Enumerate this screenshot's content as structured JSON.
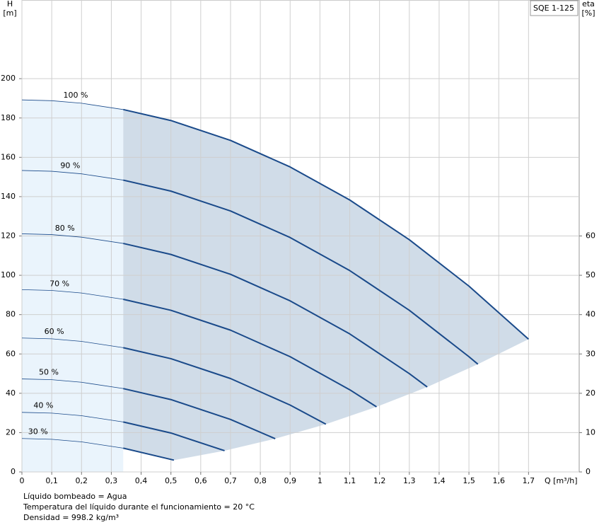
{
  "chart_data": {
    "type": "line",
    "pump_model": "SQE 1-125",
    "y_label": "H",
    "y_unit": "[m]",
    "y2_label": "eta",
    "y2_unit": "[%]",
    "x_label": "Q [m³/h]",
    "xlim": [
      0,
      1.87
    ],
    "ylim": [
      0,
      240
    ],
    "y2lim": [
      0,
      120
    ],
    "xticks": [
      0,
      {
        "value": 0.1,
        "label": "0,1"
      },
      {
        "value": 0.2,
        "label": "0,2"
      },
      {
        "value": 0.3,
        "label": "0,3"
      },
      {
        "value": 0.4,
        "label": "0,4"
      },
      {
        "value": 0.5,
        "label": "0,5"
      },
      {
        "value": 0.6,
        "label": "0,6"
      },
      {
        "value": 0.7,
        "label": "0,7"
      },
      {
        "value": 0.8,
        "label": "0,8"
      },
      {
        "value": 0.9,
        "label": "0,9"
      },
      {
        "value": 1,
        "label": "1"
      },
      {
        "value": 1.1,
        "label": "1,1"
      },
      {
        "value": 1.2,
        "label": "1,2"
      },
      {
        "value": 1.3,
        "label": "1,3"
      },
      {
        "value": 1.4,
        "label": "1,4"
      },
      {
        "value": 1.5,
        "label": "1,5"
      },
      {
        "value": 1.6,
        "label": "1,6"
      },
      {
        "value": 1.7,
        "label": "1,7"
      }
    ],
    "yticks": [
      0,
      20,
      40,
      60,
      80,
      100,
      120,
      140,
      160,
      180,
      200
    ],
    "y2ticks": [
      0,
      10,
      20,
      30,
      40,
      50,
      60
    ],
    "grid": true,
    "series": [
      {
        "name": "100 %",
        "color": "#1a4a8a",
        "x": [
          0,
          0.1,
          0.2,
          0.34,
          0.5,
          0.7,
          0.9,
          1.1,
          1.3,
          1.5,
          1.7
        ],
        "values": [
          189.2,
          188.8,
          187.5,
          184.3,
          178.7,
          168.6,
          155.1,
          138.3,
          118.1,
          94.5,
          67.5
        ]
      },
      {
        "name": "90 %",
        "color": "#1a4a8a",
        "x": [
          0,
          0.1,
          0.2,
          0.34,
          0.5,
          0.7,
          0.9,
          1.1,
          1.3,
          1.5,
          1.53
        ],
        "values": [
          153.3,
          152.9,
          151.6,
          148.4,
          142.8,
          132.7,
          119.2,
          102.4,
          82.2,
          58.6,
          54.8
        ]
      },
      {
        "name": "80 %",
        "color": "#1a4a8a",
        "x": [
          0,
          0.1,
          0.2,
          0.34,
          0.5,
          0.7,
          0.9,
          1.1,
          1.3,
          1.36
        ],
        "values": [
          121.1,
          120.7,
          119.4,
          116.2,
          110.6,
          100.5,
          87.0,
          70.2,
          50.0,
          43.2
        ]
      },
      {
        "name": "70 %",
        "color": "#1a4a8a",
        "x": [
          0,
          0.1,
          0.2,
          0.34,
          0.5,
          0.7,
          0.9,
          1.1,
          1.19
        ],
        "values": [
          92.7,
          92.3,
          91.0,
          87.8,
          82.2,
          72.1,
          58.6,
          41.8,
          33.1
        ]
      },
      {
        "name": "60 %",
        "color": "#1a4a8a",
        "x": [
          0,
          0.1,
          0.2,
          0.34,
          0.5,
          0.7,
          0.9,
          1.02
        ],
        "values": [
          68.1,
          67.7,
          66.4,
          63.2,
          57.6,
          47.5,
          34.0,
          24.3
        ]
      },
      {
        "name": "50 %",
        "color": "#1a4a8a",
        "x": [
          0,
          0.1,
          0.2,
          0.34,
          0.5,
          0.7,
          0.85
        ],
        "values": [
          47.3,
          46.9,
          45.6,
          42.4,
          36.8,
          26.7,
          16.9
        ]
      },
      {
        "name": "40 %",
        "color": "#1a4a8a",
        "x": [
          0,
          0.1,
          0.2,
          0.34,
          0.5,
          0.68
        ],
        "values": [
          30.3,
          29.9,
          28.6,
          25.4,
          19.8,
          10.8
        ]
      },
      {
        "name": "30 %",
        "color": "#1a4a8a",
        "x": [
          0,
          0.1,
          0.2,
          0.34,
          0.51
        ],
        "values": [
          17.0,
          16.6,
          15.3,
          12.1,
          6.0
        ]
      }
    ],
    "notes": [
      "Líquido bombeado = Agua",
      "Temperatura del líquido durante el funcionamiento = 20 °C",
      "Densidad = 998.2 kg/m³"
    ]
  }
}
